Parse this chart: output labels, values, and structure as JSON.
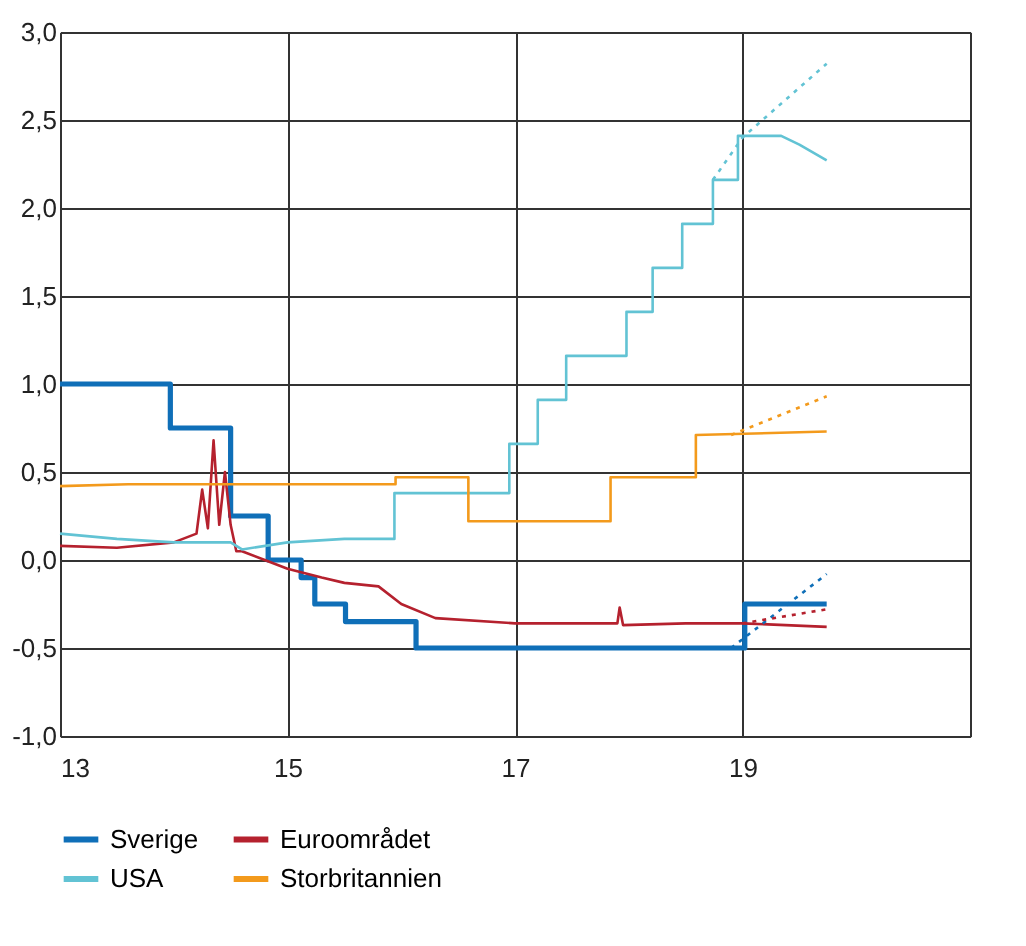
{
  "chart_data": {
    "type": "line",
    "xlim": [
      13,
      21
    ],
    "xticks": [
      13,
      15,
      17,
      19,
      {
        "value": 21,
        "label": null
      }
    ],
    "ylim": [
      -1,
      3
    ],
    "yticks": [
      {
        "value": -1,
        "label": "-1,0"
      },
      {
        "value": -0.5,
        "label": "-0,5"
      },
      {
        "value": 0,
        "label": "0,0"
      },
      {
        "value": 0.5,
        "label": "0,5"
      },
      {
        "value": 1,
        "label": "1,0"
      },
      {
        "value": 1.5,
        "label": "1,5"
      },
      {
        "value": 2,
        "label": "2,0"
      },
      {
        "value": 2.5,
        "label": "2,5"
      },
      {
        "value": 3,
        "label": "3,0"
      }
    ],
    "grid": true,
    "legend": "bottom",
    "line_style": "solid",
    "series": [
      {
        "name": "Sverige",
        "color": "#0f6fb8",
        "x": [
          13,
          13.97,
          13.97,
          14.5,
          14.5,
          14.83,
          14.83,
          15.12,
          15.12,
          15.24,
          15.24,
          15.51,
          15.51,
          16.13,
          16.13,
          19.02,
          19.02,
          19.74
        ],
        "values": [
          1,
          1,
          0.75,
          0.75,
          0.25,
          0.25,
          0,
          0,
          -0.1,
          -0.1,
          -0.25,
          -0.25,
          -0.35,
          -0.35,
          -0.5,
          -0.5,
          -0.25,
          -0.25
        ]
      },
      {
        "name": "Euroområdet",
        "color": "#b5212e",
        "x": [
          13,
          13.5,
          14.0,
          14.2,
          14.25,
          14.3,
          14.35,
          14.4,
          14.45,
          14.5,
          14.55,
          14.6,
          14.8,
          15.0,
          15.3,
          15.5,
          15.8,
          16.0,
          16.3,
          17.0,
          17.9,
          17.92,
          17.95,
          18.5,
          19.0,
          19.74
        ],
        "values": [
          0.08,
          0.07,
          0.1,
          0.15,
          0.4,
          0.18,
          0.68,
          0.2,
          0.5,
          0.2,
          0.05,
          0.05,
          0,
          -0.05,
          -0.1,
          -0.13,
          -0.15,
          -0.25,
          -0.33,
          -0.36,
          -0.36,
          -0.27,
          -0.37,
          -0.36,
          -0.36,
          -0.38
        ]
      },
      {
        "name": "USA",
        "color": "#62c3d4",
        "x": [
          13,
          13.5,
          14.0,
          14.5,
          14.6,
          15.0,
          15.5,
          15.94,
          15.94,
          16.95,
          16.95,
          17.2,
          17.2,
          17.45,
          17.45,
          17.98,
          17.98,
          18.21,
          18.21,
          18.47,
          18.47,
          18.74,
          18.74,
          18.96,
          18.96,
          19.34,
          19.5,
          19.74
        ],
        "values": [
          0.15,
          0.12,
          0.1,
          0.1,
          0.06,
          0.1,
          0.12,
          0.12,
          0.38,
          0.38,
          0.66,
          0.66,
          0.91,
          0.91,
          1.16,
          1.16,
          1.41,
          1.41,
          1.66,
          1.66,
          1.91,
          1.91,
          2.16,
          2.16,
          2.41,
          2.41,
          2.36,
          2.27
        ]
      },
      {
        "name": "Storbritannien",
        "color": "#f39a1c",
        "x": [
          13,
          13.6,
          15.95,
          15.95,
          16.59,
          16.59,
          17.84,
          17.84,
          18.59,
          18.59,
          19.74
        ],
        "values": [
          0.42,
          0.43,
          0.43,
          0.47,
          0.47,
          0.22,
          0.22,
          0.47,
          0.47,
          0.71,
          0.73
        ]
      },
      {
        "color": "#0f6fb8",
        "line_style": "dotted",
        "x": [
          18.9,
          19.3,
          19.74
        ],
        "values": [
          -0.5,
          -0.3,
          -0.08
        ]
      },
      {
        "color": "#b5212e",
        "line_style": "dotted",
        "x": [
          19.0,
          19.74
        ],
        "values": [
          -0.36,
          -0.28
        ]
      },
      {
        "color": "#62c3d4",
        "line_style": "dotted",
        "x": [
          18.74,
          19.0,
          19.74
        ],
        "values": [
          2.16,
          2.4,
          2.82
        ]
      },
      {
        "color": "#f39a1c",
        "line_style": "dotted",
        "x": [
          18.9,
          19.74
        ],
        "values": [
          0.71,
          0.93
        ]
      }
    ]
  }
}
